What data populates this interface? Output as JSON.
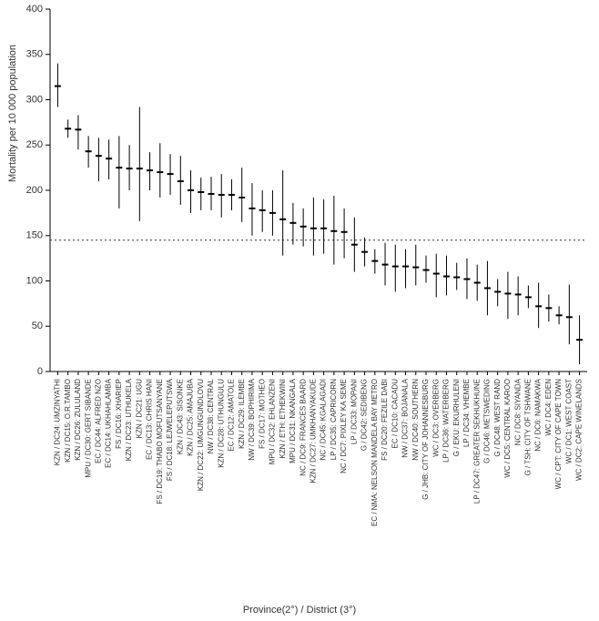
{
  "chart": {
    "type": "point-range",
    "y_axis_title": "Mortality per 10 000 population",
    "x_axis_title": "Province(2°) / District (3°)",
    "ylim": [
      0,
      400
    ],
    "ytick_step": 50,
    "reference_line": 145,
    "background_color": "#ffffff",
    "axis_color": "#000000",
    "marker_color": "#000000",
    "reference_line_color": "#333333",
    "tick_font_size": 11,
    "xlabel_font_size": 8,
    "axis_title_font_size": 11,
    "data": [
      {
        "label": "KZN / DC24: UMZINYATHI",
        "mean": 315,
        "lo": 292,
        "hi": 340
      },
      {
        "label": "KZN / DC15: O.R.TAMBO",
        "mean": 268,
        "lo": 258,
        "hi": 278
      },
      {
        "label": "KZN / DC26: ZULULAND",
        "mean": 267,
        "lo": 245,
        "hi": 283
      },
      {
        "label": "MPU / DC30: GERT SIBANDE",
        "mean": 243,
        "lo": 225,
        "hi": 260
      },
      {
        "label": "EC / DC44: ALFRED NZO",
        "mean": 238,
        "lo": 210,
        "hi": 258
      },
      {
        "label": "EC / DC14: UKHAHLAMBA",
        "mean": 235,
        "lo": 212,
        "hi": 256
      },
      {
        "label": "FS / DC16: XHARIEP",
        "mean": 225,
        "lo": 180,
        "hi": 260
      },
      {
        "label": "KZN / DC23: UTHUKELA",
        "mean": 224,
        "lo": 200,
        "hi": 250
      },
      {
        "label": "KZN / DC21: UGU",
        "mean": 224,
        "lo": 166,
        "hi": 292
      },
      {
        "label": "EC / DC13: CHRIS HANI",
        "mean": 222,
        "lo": 200,
        "hi": 242
      },
      {
        "label": "FS / DC19: THABO MOFUTSANYANE",
        "mean": 220,
        "lo": 192,
        "hi": 252
      },
      {
        "label": "FS / DC18: LEJWELEPUTSWA",
        "mean": 218,
        "lo": 195,
        "hi": 240
      },
      {
        "label": "KZN / DC43: SISONKE",
        "mean": 210,
        "lo": 184,
        "hi": 238
      },
      {
        "label": "KZN / DC25: AMAJUBA",
        "mean": 200,
        "lo": 175,
        "hi": 222
      },
      {
        "label": "KZN / DC22: UMGUNGUNDLOVU",
        "mean": 198,
        "lo": 178,
        "hi": 214
      },
      {
        "label": "NW / DC38: CENTRAL",
        "mean": 196,
        "lo": 178,
        "hi": 215
      },
      {
        "label": "KZN / DC28: UTHUNGULU",
        "mean": 195,
        "lo": 170,
        "hi": 218
      },
      {
        "label": "EC / DC12: AMATOLE",
        "mean": 195,
        "lo": 178,
        "hi": 212
      },
      {
        "label": "KZN / DC29: ILEMBE",
        "mean": 192,
        "lo": 165,
        "hi": 225
      },
      {
        "label": "NW / DC39: BOPHIRIMA",
        "mean": 180,
        "lo": 150,
        "hi": 208
      },
      {
        "label": "FS / DC17: MOTHEO",
        "mean": 178,
        "lo": 154,
        "hi": 200
      },
      {
        "label": "MPU / DC32: EHLANZENI",
        "mean": 175,
        "lo": 150,
        "hi": 200
      },
      {
        "label": "KZN / ETH: ETHEKWINI",
        "mean": 168,
        "lo": 128,
        "hi": 222
      },
      {
        "label": "MPU / DC31: NKANGALA",
        "mean": 164,
        "lo": 140,
        "hi": 186
      },
      {
        "label": "NC / DC9: FRANCES BAARD",
        "mean": 160,
        "lo": 138,
        "hi": 180
      },
      {
        "label": "KZN / DC27: UMKHANYAKUDE",
        "mean": 158,
        "lo": 128,
        "hi": 192
      },
      {
        "label": "NC / DC45: KGALAGADI",
        "mean": 158,
        "lo": 130,
        "hi": 190
      },
      {
        "label": "LP / DC35: CAPRICORN",
        "mean": 155,
        "lo": 118,
        "hi": 194
      },
      {
        "label": "NC / DC7: PIXLEY KA SEME",
        "mean": 154,
        "lo": 125,
        "hi": 180
      },
      {
        "label": "LP / DC33: MOPANI",
        "mean": 140,
        "lo": 110,
        "hi": 170
      },
      {
        "label": "G / DC42: SEDIBENG",
        "mean": 132,
        "lo": 116,
        "hi": 148
      },
      {
        "label": "EC / NMA: NELSON MANDELA BAY METRO",
        "mean": 122,
        "lo": 108,
        "hi": 135
      },
      {
        "label": "FS / DC20: FEZILE DABI",
        "mean": 118,
        "lo": 95,
        "hi": 142
      },
      {
        "label": "EC / DC10: CACADU",
        "mean": 116,
        "lo": 88,
        "hi": 140
      },
      {
        "label": "NW / DC37: BOJANALA",
        "mean": 116,
        "lo": 92,
        "hi": 135
      },
      {
        "label": "NW / DC40: SOUTHERN",
        "mean": 115,
        "lo": 95,
        "hi": 140
      },
      {
        "label": "G / JHB: CITY OF JOHANNESBURG",
        "mean": 112,
        "lo": 98,
        "hi": 128
      },
      {
        "label": "WC / DC3: OVERBERG",
        "mean": 108,
        "lo": 82,
        "hi": 130
      },
      {
        "label": "LP / DC36: WATERBERG",
        "mean": 105,
        "lo": 84,
        "hi": 128
      },
      {
        "label": "G / EKU: EKURHULENI",
        "mean": 104,
        "lo": 90,
        "hi": 120
      },
      {
        "label": "LP / DC34: VHEMBE",
        "mean": 102,
        "lo": 80,
        "hi": 125
      },
      {
        "label": "LP / DC47: GREATER SEKHUKHUNE",
        "mean": 98,
        "lo": 78,
        "hi": 118
      },
      {
        "label": "G / DC46: METSWEDING",
        "mean": 92,
        "lo": 62,
        "hi": 122
      },
      {
        "label": "G / DC48: WEST RAND",
        "mean": 88,
        "lo": 72,
        "hi": 102
      },
      {
        "label": "WC / DC5: CENTRAL KAROO",
        "mean": 86,
        "lo": 58,
        "hi": 110
      },
      {
        "label": "NC / DC8: SIYANDA",
        "mean": 85,
        "lo": 62,
        "hi": 105
      },
      {
        "label": "G / TSH: CITY OF TSHWANE",
        "mean": 82,
        "lo": 70,
        "hi": 95
      },
      {
        "label": "NC / DC6: NAMAKWA",
        "mean": 72,
        "lo": 48,
        "hi": 98
      },
      {
        "label": "WC / DC4: EDEN",
        "mean": 70,
        "lo": 55,
        "hi": 85
      },
      {
        "label": "WC / CPT: CITY OF CAPE TOWN",
        "mean": 62,
        "lo": 52,
        "hi": 72
      },
      {
        "label": "WC / DC1: WEST COAST",
        "mean": 60,
        "lo": 30,
        "hi": 96
      },
      {
        "label": "WC / DC2: CAPE WINELANDS",
        "mean": 35,
        "lo": 8,
        "hi": 62
      }
    ]
  }
}
